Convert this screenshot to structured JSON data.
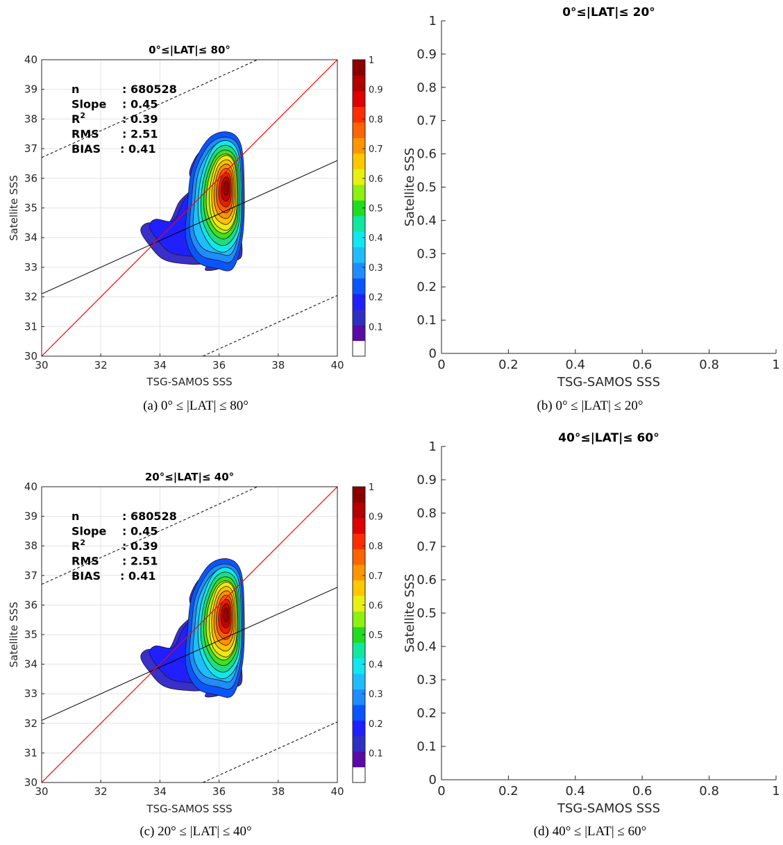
{
  "chart_data": [
    {
      "id": "a",
      "type": "contour",
      "title": "0°≤|LAT|≤ 80°",
      "caption": "(a) 0° ≤ |LAT| ≤ 80°",
      "xlabel": "TSG-SAMOS SSS",
      "ylabel": "Satellite SSS",
      "xlim": [
        30,
        40
      ],
      "ylim": [
        30,
        40
      ],
      "xticks": [
        30,
        32,
        34,
        36,
        38,
        40
      ],
      "yticks": [
        30,
        31,
        32,
        33,
        34,
        35,
        36,
        37,
        38,
        39,
        40
      ],
      "grid": true,
      "stats": [
        {
          "label": "n",
          "value": ": 680528"
        },
        {
          "label": "Slope",
          "value": ": 0.45"
        },
        {
          "label": "R",
          "sup": "2",
          "value": ": 0.39"
        },
        {
          "label": "RMS",
          "value": ": 2.51"
        },
        {
          "label": "BIAS",
          "value": ": 0.41"
        }
      ],
      "lines": {
        "one_to_one": {
          "x": [
            30,
            40
          ],
          "y": [
            30,
            40
          ],
          "color": "#ff0000"
        },
        "regression": {
          "x": [
            30,
            40
          ],
          "y": [
            32.1,
            36.6
          ],
          "color": "#000000"
        },
        "upper_dashed": {
          "x": [
            30,
            37.3
          ],
          "y": [
            36.7,
            40
          ]
        },
        "lower_dashed": {
          "x": [
            35.45,
            40
          ],
          "y": [
            30,
            32.05
          ]
        }
      },
      "density_peak": {
        "x": 36.25,
        "y": 35.7
      },
      "colorbar": {
        "ticks": [
          "0.1",
          "0.2",
          "0.3",
          "0.4",
          "0.5",
          "0.6",
          "0.7",
          "0.8",
          "0.9",
          "1"
        ],
        "range": [
          0,
          1
        ],
        "colors": [
          "#ffffff",
          "#5b0aa8",
          "#2f2fc4",
          "#1f1fff",
          "#0a55ff",
          "#1f8cff",
          "#1fbdff",
          "#10e8f0",
          "#10e8a0",
          "#1fdc1f",
          "#8cf010",
          "#e8f010",
          "#ffc800",
          "#ff9600",
          "#ff6400",
          "#ff2d00",
          "#e00000",
          "#b40000",
          "#8c0000"
        ]
      }
    },
    {
      "id": "b",
      "type": "empty",
      "title": "0°≤|LAT|≤ 20°",
      "caption": "(b) 0° ≤ |LAT| ≤ 20°",
      "xlabel": "TSG-SAMOS SSS",
      "ylabel": "Satellite SSS",
      "xlim": [
        0,
        1
      ],
      "ylim": [
        0,
        1
      ],
      "xticks": [
        "0",
        "0.2",
        "0.4",
        "0.6",
        "0.8",
        "1"
      ],
      "yticks": [
        "0",
        "0.1",
        "0.2",
        "0.3",
        "0.4",
        "0.5",
        "0.6",
        "0.7",
        "0.8",
        "0.9",
        "1"
      ]
    },
    {
      "id": "c",
      "type": "contour",
      "title": "20°≤|LAT|≤ 40°",
      "caption": "(c) 20° ≤ |LAT| ≤ 40°",
      "xlabel": "TSG-SAMOS SSS",
      "ylabel": "Satellite SSS",
      "xlim": [
        30,
        40
      ],
      "ylim": [
        30,
        40
      ],
      "xticks": [
        30,
        32,
        34,
        36,
        38,
        40
      ],
      "yticks": [
        30,
        31,
        32,
        33,
        34,
        35,
        36,
        37,
        38,
        39,
        40
      ],
      "grid": true,
      "stats": [
        {
          "label": "n",
          "value": ": 680528"
        },
        {
          "label": "Slope",
          "value": ": 0.45"
        },
        {
          "label": "R",
          "sup": "2",
          "value": ": 0.39"
        },
        {
          "label": "RMS",
          "value": ": 2.51"
        },
        {
          "label": "BIAS",
          "value": ": 0.41"
        }
      ],
      "lines": {
        "one_to_one": {
          "x": [
            30,
            40
          ],
          "y": [
            30,
            40
          ],
          "color": "#ff0000"
        },
        "regression": {
          "x": [
            30,
            40
          ],
          "y": [
            32.1,
            36.6
          ],
          "color": "#000000"
        },
        "upper_dashed": {
          "x": [
            30,
            37.3
          ],
          "y": [
            36.7,
            40
          ]
        },
        "lower_dashed": {
          "x": [
            35.45,
            40
          ],
          "y": [
            30,
            32.05
          ]
        }
      },
      "density_peak": {
        "x": 36.25,
        "y": 35.7
      },
      "colorbar": {
        "ticks": [
          "0.1",
          "0.2",
          "0.3",
          "0.4",
          "0.5",
          "0.6",
          "0.7",
          "0.8",
          "0.9",
          "1"
        ],
        "range": [
          0,
          1
        ],
        "colors": [
          "#ffffff",
          "#5b0aa8",
          "#2f2fc4",
          "#1f1fff",
          "#0a55ff",
          "#1f8cff",
          "#1fbdff",
          "#10e8f0",
          "#10e8a0",
          "#1fdc1f",
          "#8cf010",
          "#e8f010",
          "#ffc800",
          "#ff9600",
          "#ff6400",
          "#ff2d00",
          "#e00000",
          "#b40000",
          "#8c0000"
        ]
      }
    },
    {
      "id": "d",
      "type": "empty",
      "title": "40°≤|LAT|≤ 60°",
      "caption": "(d) 40° ≤ |LAT| ≤ 60°",
      "xlabel": "TSG-SAMOS SSS",
      "ylabel": "Satellite SSS",
      "xlim": [
        0,
        1
      ],
      "ylim": [
        0,
        1
      ],
      "xticks": [
        "0",
        "0.2",
        "0.4",
        "0.6",
        "0.8",
        "1"
      ],
      "yticks": [
        "0",
        "0.1",
        "0.2",
        "0.3",
        "0.4",
        "0.5",
        "0.6",
        "0.7",
        "0.8",
        "0.9",
        "1"
      ]
    }
  ]
}
